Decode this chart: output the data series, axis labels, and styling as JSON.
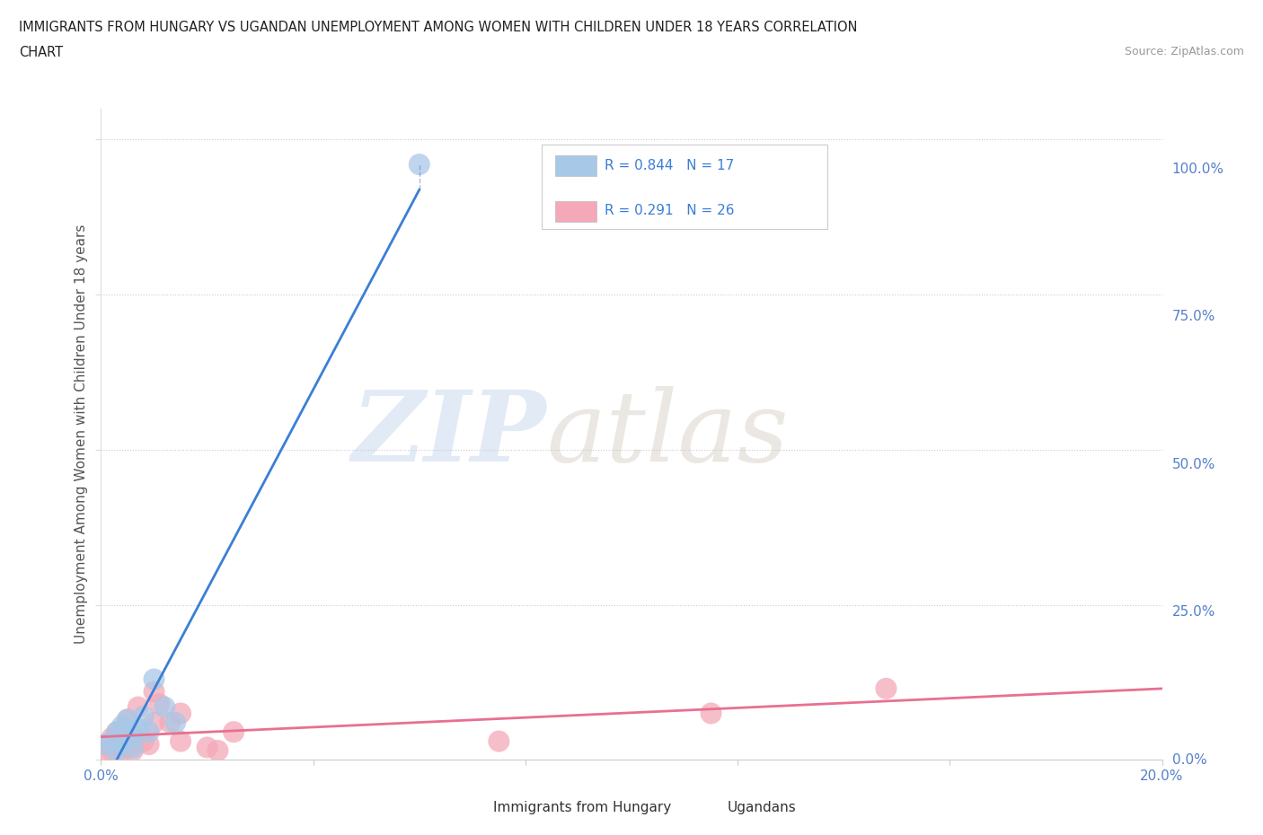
{
  "title_line1": "IMMIGRANTS FROM HUNGARY VS UGANDAN UNEMPLOYMENT AMONG WOMEN WITH CHILDREN UNDER 18 YEARS CORRELATION",
  "title_line2": "CHART",
  "source": "Source: ZipAtlas.com",
  "ylabel": "Unemployment Among Women with Children Under 18 years",
  "xlim": [
    0.0,
    0.2
  ],
  "ylim": [
    0.0,
    1.05
  ],
  "xticks": [
    0.0,
    0.04,
    0.08,
    0.12,
    0.16,
    0.2
  ],
  "yticks": [
    0.0,
    0.25,
    0.5,
    0.75,
    1.0
  ],
  "ytick_labels": [
    "0.0%",
    "25.0%",
    "50.0%",
    "75.0%",
    "100.0%"
  ],
  "xtick_labels": [
    "0.0%",
    "",
    "",
    "",
    "",
    "20.0%"
  ],
  "hungary_R": 0.844,
  "hungary_N": 17,
  "ugandan_R": 0.291,
  "ugandan_N": 26,
  "hungary_color": "#a8c8e8",
  "ugandan_color": "#f4a8b8",
  "hungary_line_color": "#3a7fd5",
  "ugandan_line_color": "#e87090",
  "background_color": "#ffffff",
  "hungary_x": [
    0.001,
    0.002,
    0.003,
    0.003,
    0.004,
    0.004,
    0.005,
    0.005,
    0.006,
    0.006,
    0.007,
    0.008,
    0.009,
    0.01,
    0.012,
    0.014,
    0.06
  ],
  "hungary_y": [
    0.025,
    0.03,
    0.015,
    0.045,
    0.025,
    0.055,
    0.035,
    0.065,
    0.02,
    0.04,
    0.05,
    0.07,
    0.045,
    0.13,
    0.085,
    0.06,
    0.96
  ],
  "ugandan_x": [
    0.001,
    0.001,
    0.002,
    0.002,
    0.003,
    0.003,
    0.004,
    0.005,
    0.005,
    0.006,
    0.006,
    0.007,
    0.008,
    0.009,
    0.01,
    0.01,
    0.011,
    0.013,
    0.015,
    0.015,
    0.02,
    0.022,
    0.025,
    0.075,
    0.115,
    0.148
  ],
  "ugandan_y": [
    0.01,
    0.025,
    0.015,
    0.035,
    0.025,
    0.045,
    0.015,
    0.02,
    0.065,
    0.015,
    0.04,
    0.085,
    0.03,
    0.025,
    0.11,
    0.06,
    0.09,
    0.06,
    0.03,
    0.075,
    0.02,
    0.015,
    0.045,
    0.03,
    0.075,
    0.115
  ]
}
